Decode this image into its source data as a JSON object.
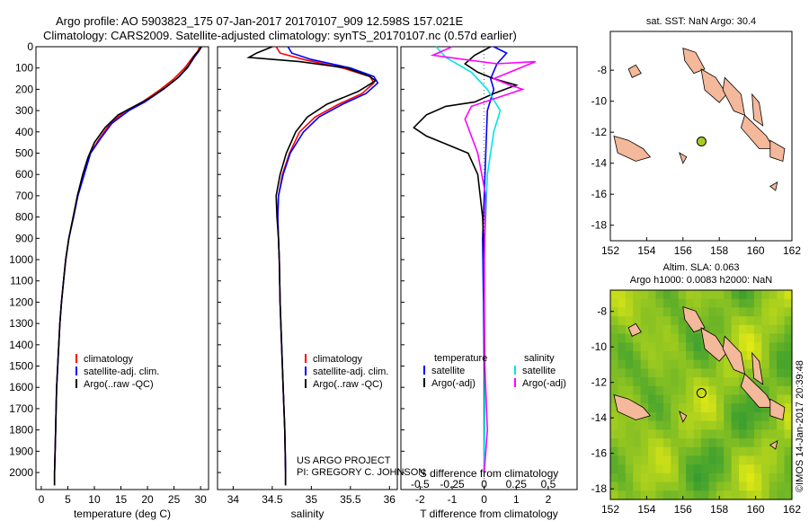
{
  "header": {
    "line1": "Argo profile: AO 5903823_175 07-Jan-2017 20170107_909 12.598S 157.021E",
    "line2": "Climatology: CARS2009. Satellite-adjusted climatology: synTS_20170107.nc (0.57d earlier)"
  },
  "credit": "©IMOS 14-Jan-2017 20:39:48",
  "project": {
    "line1": "US ARGO PROJECT",
    "line2": "PI: GREGORY C. JOHNSON"
  },
  "colors": {
    "climatology": "#ff0000",
    "satellite": "#0000ff",
    "argo": "#000000",
    "sal_satellite": "#00e5e5",
    "sal_argo": "#ff00ff",
    "land": "#f4b89a"
  },
  "chart_data": [
    {
      "type": "line",
      "id": "temperature",
      "xlabel": "temperature (deg C)",
      "ylabel": "",
      "xlim": [
        -1,
        31.5
      ],
      "ylim": [
        2080,
        0
      ],
      "xticks": [
        0,
        5,
        10,
        15,
        20,
        25,
        30
      ],
      "yticks": [
        0,
        100,
        200,
        300,
        400,
        500,
        600,
        700,
        800,
        900,
        1000,
        1100,
        1200,
        1300,
        1400,
        1500,
        1600,
        1700,
        1800,
        1900,
        2000
      ],
      "legend": [
        "climatology",
        "satellite-adj. clim.",
        "Argo(..raw -QC)"
      ],
      "series": [
        {
          "name": "climatology",
          "color": "#ff0000",
          "points": [
            [
              29.8,
              0
            ],
            [
              29.5,
              20
            ],
            [
              28.5,
              50
            ],
            [
              27,
              100
            ],
            [
              25,
              150
            ],
            [
              22.5,
              200
            ],
            [
              19,
              260
            ],
            [
              16,
              300
            ],
            [
              13,
              360
            ],
            [
              11,
              430
            ],
            [
              9.2,
              500
            ],
            [
              8,
              600
            ],
            [
              6.8,
              700
            ],
            [
              6,
              800
            ],
            [
              5.2,
              900
            ],
            [
              4.6,
              1000
            ],
            [
              4.2,
              1100
            ],
            [
              3.8,
              1200
            ],
            [
              3.5,
              1300
            ],
            [
              3.3,
              1400
            ],
            [
              3.1,
              1500
            ],
            [
              2.9,
              1600
            ],
            [
              2.8,
              1700
            ],
            [
              2.7,
              1800
            ],
            [
              2.6,
              1900
            ],
            [
              2.5,
              2000
            ],
            [
              2.5,
              2060
            ]
          ]
        },
        {
          "name": "satellite-adj. clim.",
          "color": "#0000ff",
          "points": [
            [
              30,
              0
            ],
            [
              29.7,
              20
            ],
            [
              28.8,
              50
            ],
            [
              27.5,
              100
            ],
            [
              25.5,
              150
            ],
            [
              23,
              200
            ],
            [
              19.5,
              260
            ],
            [
              16.5,
              300
            ],
            [
              13.3,
              360
            ],
            [
              11.2,
              430
            ],
            [
              9.3,
              500
            ],
            [
              8.1,
              600
            ],
            [
              6.9,
              700
            ],
            [
              6.1,
              800
            ],
            [
              5.2,
              900
            ],
            [
              4.6,
              1000
            ],
            [
              4.2,
              1100
            ],
            [
              3.8,
              1200
            ],
            [
              3.5,
              1300
            ],
            [
              3.3,
              1400
            ],
            [
              3.1,
              1500
            ],
            [
              2.9,
              1600
            ],
            [
              2.8,
              1700
            ],
            [
              2.7,
              1800
            ],
            [
              2.6,
              1900
            ],
            [
              2.5,
              2000
            ],
            [
              2.5,
              2060
            ]
          ]
        },
        {
          "name": "Argo(..raw -QC)",
          "color": "#000000",
          "points": [
            [
              30.2,
              0
            ],
            [
              29.8,
              15
            ],
            [
              28.9,
              40
            ],
            [
              27.7,
              90
            ],
            [
              26,
              140
            ],
            [
              23.5,
              190
            ],
            [
              20.5,
              240
            ],
            [
              17.5,
              280
            ],
            [
              14.5,
              320
            ],
            [
              12,
              380
            ],
            [
              10,
              450
            ],
            [
              8.8,
              520
            ],
            [
              7.8,
              600
            ],
            [
              6.8,
              700
            ],
            [
              6,
              800
            ],
            [
              5.2,
              900
            ],
            [
              4.6,
              1000
            ],
            [
              4.2,
              1100
            ],
            [
              3.8,
              1200
            ],
            [
              3.5,
              1300
            ],
            [
              3.3,
              1400
            ],
            [
              3.1,
              1500
            ],
            [
              2.9,
              1600
            ],
            [
              2.8,
              1700
            ],
            [
              2.7,
              1800
            ],
            [
              2.6,
              1900
            ],
            [
              2.5,
              2000
            ],
            [
              2.5,
              2060
            ]
          ]
        }
      ]
    },
    {
      "type": "line",
      "id": "salinity",
      "xlabel": "salinity",
      "ylabel": "",
      "xlim": [
        33.8,
        36.1
      ],
      "ylim": [
        2080,
        0
      ],
      "xticks": [
        34,
        34.5,
        35,
        35.5,
        36
      ],
      "legend": [
        "climatology",
        "satellite-adj. clim.",
        "Argo(..raw -QC)"
      ],
      "series": [
        {
          "name": "climatology",
          "color": "#ff0000",
          "points": [
            [
              34.55,
              0
            ],
            [
              34.6,
              30
            ],
            [
              34.9,
              60
            ],
            [
              35.4,
              100
            ],
            [
              35.75,
              140
            ],
            [
              35.8,
              170
            ],
            [
              35.65,
              220
            ],
            [
              35.35,
              270
            ],
            [
              35.05,
              330
            ],
            [
              34.85,
              400
            ],
            [
              34.72,
              500
            ],
            [
              34.63,
              600
            ],
            [
              34.58,
              700
            ],
            [
              34.57,
              800
            ],
            [
              34.58,
              900
            ],
            [
              34.59,
              1000
            ],
            [
              34.6,
              1200
            ],
            [
              34.62,
              1400
            ],
            [
              34.64,
              1600
            ],
            [
              34.66,
              1800
            ],
            [
              34.67,
              2000
            ],
            [
              34.67,
              2060
            ]
          ]
        },
        {
          "name": "satellite-adj. clim.",
          "color": "#0000ff",
          "points": [
            [
              34.7,
              0
            ],
            [
              34.75,
              30
            ],
            [
              35.0,
              60
            ],
            [
              35.5,
              100
            ],
            [
              35.8,
              140
            ],
            [
              35.85,
              170
            ],
            [
              35.7,
              220
            ],
            [
              35.4,
              270
            ],
            [
              35.1,
              330
            ],
            [
              34.9,
              400
            ],
            [
              34.73,
              500
            ],
            [
              34.64,
              600
            ],
            [
              34.58,
              700
            ],
            [
              34.57,
              800
            ],
            [
              34.58,
              900
            ],
            [
              34.59,
              1000
            ],
            [
              34.6,
              1200
            ],
            [
              34.62,
              1400
            ],
            [
              34.64,
              1600
            ],
            [
              34.66,
              1800
            ],
            [
              34.67,
              2000
            ],
            [
              34.67,
              2060
            ]
          ]
        },
        {
          "name": "Argo(..raw -QC)",
          "color": "#000000",
          "points": [
            [
              34.5,
              0
            ],
            [
              34.3,
              30
            ],
            [
              34.2,
              50
            ],
            [
              34.85,
              70
            ],
            [
              35.45,
              100
            ],
            [
              35.75,
              140
            ],
            [
              35.82,
              160
            ],
            [
              35.6,
              210
            ],
            [
              35.2,
              270
            ],
            [
              34.95,
              330
            ],
            [
              34.8,
              400
            ],
            [
              34.68,
              500
            ],
            [
              34.6,
              600
            ],
            [
              34.55,
              700
            ],
            [
              34.56,
              800
            ],
            [
              34.58,
              900
            ],
            [
              34.59,
              1000
            ],
            [
              34.6,
              1200
            ],
            [
              34.62,
              1400
            ],
            [
              34.64,
              1600
            ],
            [
              34.66,
              1800
            ],
            [
              34.67,
              2000
            ],
            [
              34.67,
              2060
            ]
          ]
        }
      ]
    },
    {
      "type": "line",
      "id": "difference",
      "xlabel": "T difference from climatology",
      "xlabel_top": "S difference from climatology",
      "xlim": [
        -2.6,
        2.9
      ],
      "ylim": [
        2080,
        0
      ],
      "xticks": [
        -2,
        -1,
        0,
        1,
        2
      ],
      "xtick_labels_top": [
        "-0.5",
        "-0.25",
        "0",
        "0.25",
        "0.5"
      ],
      "legend_headers": [
        "temperature",
        "salinity"
      ],
      "legend": [
        "satellite",
        "Argo(-adj)",
        "satellite",
        "Argo(-adj)"
      ],
      "series": [
        {
          "name": "satellite",
          "group": "temperature",
          "color": "#0000ff",
          "points": [
            [
              0.3,
              0
            ],
            [
              0.7,
              30
            ],
            [
              0.4,
              80
            ],
            [
              0.2,
              150
            ],
            [
              0.3,
              200
            ],
            [
              0.1,
              300
            ],
            [
              0.05,
              500
            ],
            [
              0.0,
              700
            ],
            [
              -0.05,
              900
            ],
            [
              -0.02,
              1200
            ],
            [
              0.0,
              1500
            ],
            [
              0.0,
              2000
            ]
          ]
        },
        {
          "name": "Argo(-adj)",
          "group": "temperature",
          "color": "#000000",
          "points": [
            [
              0.2,
              0
            ],
            [
              -0.3,
              40
            ],
            [
              -0.6,
              80
            ],
            [
              -0.2,
              120
            ],
            [
              0.3,
              150
            ],
            [
              1.0,
              180
            ],
            [
              0.3,
              220
            ],
            [
              -0.3,
              260
            ],
            [
              -1.2,
              280
            ],
            [
              -1.8,
              320
            ],
            [
              -2.2,
              380
            ],
            [
              -1.8,
              420
            ],
            [
              -1.3,
              450
            ],
            [
              -0.5,
              500
            ],
            [
              -0.2,
              600
            ],
            [
              -0.05,
              800
            ],
            [
              0.0,
              1000
            ],
            [
              0.0,
              1500
            ],
            [
              0.0,
              2000
            ]
          ]
        },
        {
          "name": "satellite",
          "group": "salinity",
          "color": "#00e5e5",
          "points": [
            [
              -1.5,
              0
            ],
            [
              -1.2,
              50
            ],
            [
              -0.4,
              120
            ],
            [
              0.1,
              200
            ],
            [
              0.5,
              300
            ],
            [
              0.3,
              400
            ],
            [
              0.1,
              600
            ],
            [
              0.02,
              900
            ],
            [
              0.0,
              1200
            ],
            [
              0.02,
              1500
            ],
            [
              0.0,
              2000
            ]
          ]
        },
        {
          "name": "Argo(-adj)",
          "group": "salinity",
          "color": "#ff00ff",
          "points": [
            [
              -1.0,
              0
            ],
            [
              -1.6,
              40
            ],
            [
              0.4,
              80
            ],
            [
              1.6,
              70
            ],
            [
              0.3,
              150
            ],
            [
              0.8,
              180
            ],
            [
              1.2,
              200
            ],
            [
              -0.4,
              280
            ],
            [
              -0.6,
              340
            ],
            [
              -0.4,
              420
            ],
            [
              -0.2,
              500
            ],
            [
              0.05,
              700
            ],
            [
              0.0,
              1000
            ],
            [
              0.02,
              1500
            ],
            [
              0.1,
              1800
            ],
            [
              0.0,
              2000
            ]
          ]
        }
      ]
    },
    {
      "type": "map",
      "id": "sst-map",
      "title": "sat. SST: NaN Argo: 30.4",
      "xlim": [
        152,
        162
      ],
      "ylim": [
        -19,
        -5.5
      ],
      "xticks": [
        152,
        154,
        156,
        158,
        160,
        162
      ],
      "yticks": [
        -8,
        -10,
        -12,
        -14,
        -16,
        -18
      ],
      "marker": {
        "lon": 157.02,
        "lat": -12.6
      }
    },
    {
      "type": "map",
      "id": "sla-map",
      "title_line1": "Altim. SLA: 0.063",
      "title_line2": "Argo h1000: 0.0083 h2000: NaN",
      "xlim": [
        152,
        162
      ],
      "ylim": [
        -18.6,
        -6.8
      ],
      "xticks": [
        152,
        154,
        156,
        158,
        160,
        162
      ],
      "yticks": [
        -8,
        -10,
        -12,
        -14,
        -16,
        -18
      ],
      "marker": {
        "lon": 157.02,
        "lat": -12.6
      }
    }
  ]
}
